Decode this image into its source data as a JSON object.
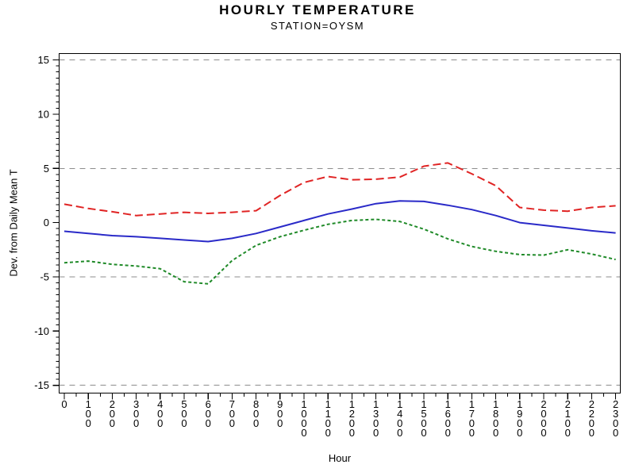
{
  "header": {
    "title": "HOURLY TEMPERATURE",
    "subtitle": "STATION=OYSM"
  },
  "chart_data": {
    "type": "line",
    "title": "HOURLY TEMPERATURE",
    "subtitle": "STATION=OYSM",
    "xlabel": "Hour",
    "ylabel": "Dev. from Daily Mean T",
    "x_tick_labels": [
      "0",
      "100",
      "200",
      "300",
      "400",
      "500",
      "600",
      "700",
      "800",
      "900",
      "1000",
      "1100",
      "1200",
      "1300",
      "1400",
      "1500",
      "1600",
      "1700",
      "1800",
      "1900",
      "2000",
      "2100",
      "2200",
      "2300"
    ],
    "ylim": [
      -15,
      15
    ],
    "y_major_ticks": [
      -15,
      -10,
      -5,
      0,
      5,
      10,
      15
    ],
    "y_minor_ticks_per_interval": 8,
    "x_minor_ticks_per_interval": 1,
    "reference_lines_y": [
      15,
      5,
      -5,
      -15
    ],
    "grid_style": "horizontal-dashed",
    "legend": "none",
    "frame": true,
    "colors": {
      "upper": "#e02424",
      "mean": "#2a2ac8",
      "lower": "#1f8a28",
      "grid": "#8c8c8c",
      "frame": "#000000"
    },
    "series": [
      {
        "name": "upper-red-dashed",
        "line_style": "dashed",
        "color_key": "upper",
        "values": [
          1.7,
          1.3,
          1.0,
          0.65,
          0.8,
          0.95,
          0.85,
          0.95,
          1.1,
          2.5,
          3.7,
          4.25,
          3.95,
          4.0,
          4.2,
          5.2,
          5.5,
          4.5,
          3.4,
          1.4,
          1.15,
          1.05,
          1.4,
          1.55
        ]
      },
      {
        "name": "mean-blue-solid",
        "line_style": "solid",
        "color_key": "mean",
        "values": [
          -0.8,
          -1.0,
          -1.2,
          -1.3,
          -1.45,
          -1.6,
          -1.75,
          -1.45,
          -1.0,
          -0.4,
          0.2,
          0.8,
          1.25,
          1.75,
          2.0,
          1.95,
          1.6,
          1.2,
          0.65,
          0.0,
          -0.25,
          -0.5,
          -0.75,
          -0.95
        ]
      },
      {
        "name": "lower-green-dashed",
        "line_style": "short-dashed",
        "color_key": "lower",
        "values": [
          -3.7,
          -3.55,
          -3.85,
          -4.0,
          -4.25,
          -5.45,
          -5.65,
          -3.5,
          -2.1,
          -1.3,
          -0.7,
          -0.15,
          0.2,
          0.3,
          0.1,
          -0.6,
          -1.5,
          -2.2,
          -2.65,
          -2.95,
          -3.0,
          -2.5,
          -2.9,
          -3.4
        ]
      }
    ]
  }
}
